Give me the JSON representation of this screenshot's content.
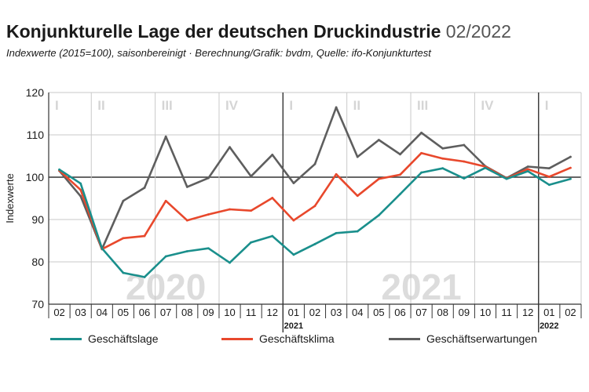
{
  "header": {
    "title": "Konjunkturelle Lage der deutschen Druckindustrie",
    "date": "02/2022",
    "subtitle": "Indexwerte (2015=100), saisonbereinigt · Berechnung/Grafik: bvdm, Quelle: ifo-Konjunkturtest"
  },
  "colors": {
    "geschaeftslage": "#1a8f8c",
    "geschaeftsklima": "#e8482c",
    "geschaeftserwartungen": "#5e5e5e",
    "grid": "#c9c9c9",
    "axis": "#333333",
    "quarter_label": "#d5d5d5",
    "year_watermark": "#dcdcdc"
  },
  "chart_data": {
    "type": "line",
    "ylabel": "Indexwerte",
    "ylim": [
      70,
      120
    ],
    "yticks": [
      70,
      80,
      90,
      100,
      110,
      120
    ],
    "reference_line": 100,
    "grid": "horizontal",
    "categories": [
      "02",
      "03",
      "04",
      "05",
      "06",
      "07",
      "08",
      "09",
      "10",
      "11",
      "12",
      "01",
      "02",
      "03",
      "04",
      "05",
      "06",
      "07",
      "08",
      "09",
      "10",
      "11",
      "12",
      "01",
      "02"
    ],
    "year_labels": [
      {
        "label": "2021",
        "category_index": 11
      },
      {
        "label": "2022",
        "category_index": 23
      }
    ],
    "quarter_bands": [
      {
        "label": "I",
        "start": -0.5,
        "end": 1.5
      },
      {
        "label": "II",
        "start": 1.5,
        "end": 4.5
      },
      {
        "label": "III",
        "start": 4.5,
        "end": 7.5
      },
      {
        "label": "IV",
        "start": 7.5,
        "end": 10.5
      },
      {
        "label": "I",
        "start": 10.5,
        "end": 13.5
      },
      {
        "label": "II",
        "start": 13.5,
        "end": 16.5
      },
      {
        "label": "III",
        "start": 16.5,
        "end": 19.5
      },
      {
        "label": "IV",
        "start": 19.5,
        "end": 22.5
      },
      {
        "label": "I",
        "start": 22.5,
        "end": 24.5
      }
    ],
    "year_watermarks": [
      {
        "label": "2020",
        "center_index": 5
      },
      {
        "label": "2021",
        "center_index": 17
      }
    ],
    "series": [
      {
        "name": "Geschäftslage",
        "color": "#1a8f8c",
        "values": [
          101.8,
          98.5,
          83.2,
          77.4,
          76.4,
          81.3,
          82.5,
          83.2,
          79.8,
          84.6,
          86.1,
          81.7,
          84.2,
          86.8,
          87.2,
          91.0,
          96.0,
          101.1,
          102.1,
          99.7,
          102.2,
          99.6,
          101.4,
          98.2,
          99.6
        ]
      },
      {
        "name": "Geschäftsklima",
        "color": "#e8482c",
        "values": [
          101.6,
          97.0,
          83.0,
          85.6,
          86.1,
          94.4,
          89.8,
          91.2,
          92.4,
          92.1,
          95.1,
          89.8,
          93.2,
          100.7,
          95.6,
          99.6,
          100.6,
          105.7,
          104.4,
          103.7,
          102.5,
          99.7,
          101.9,
          100.1,
          102.2
        ]
      },
      {
        "name": "Geschäftserwartungen",
        "color": "#5e5e5e",
        "values": [
          101.5,
          95.5,
          83.0,
          94.4,
          97.5,
          109.6,
          97.7,
          99.8,
          107.1,
          100.2,
          105.3,
          98.6,
          103.1,
          116.5,
          104.8,
          108.8,
          105.4,
          110.5,
          106.8,
          107.6,
          102.6,
          99.8,
          102.5,
          102.1,
          104.8
        ]
      }
    ]
  }
}
